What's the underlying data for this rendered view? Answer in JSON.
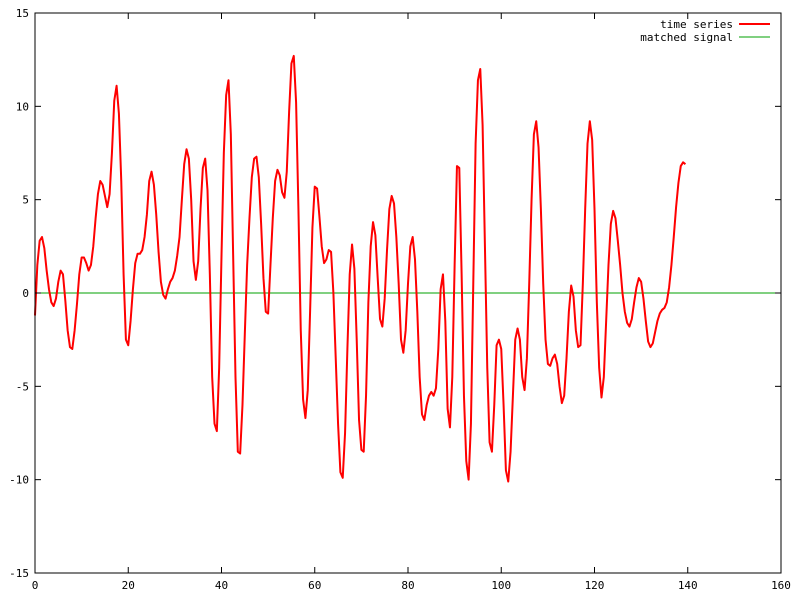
{
  "chart_data": {
    "type": "line",
    "xlim": [
      0,
      160
    ],
    "ylim": [
      -15,
      15
    ],
    "x_ticks": [
      0,
      20,
      40,
      60,
      80,
      100,
      120,
      140,
      160
    ],
    "y_ticks": [
      -15,
      -10,
      -5,
      0,
      5,
      10,
      15
    ],
    "x_tick_labels": [
      "0",
      "20",
      "40",
      "60",
      "80",
      "100",
      "120",
      "140",
      "160"
    ],
    "y_tick_labels": [
      "-15",
      "-10",
      "-5",
      "0",
      "5",
      "10",
      "15"
    ],
    "grid": false,
    "legend_position": "top-right",
    "series": [
      {
        "name": "time series",
        "color": "#ff0000",
        "points": [
          [
            0,
            -1.2
          ],
          [
            0.5,
            1.5
          ],
          [
            1,
            2.8
          ],
          [
            1.5,
            3.0
          ],
          [
            2,
            2.4
          ],
          [
            2.5,
            1.2
          ],
          [
            3,
            0.2
          ],
          [
            3.5,
            -0.5
          ],
          [
            4,
            -0.7
          ],
          [
            4.5,
            -0.3
          ],
          [
            5,
            0.6
          ],
          [
            5.5,
            1.2
          ],
          [
            6,
            1.0
          ],
          [
            6.5,
            -0.4
          ],
          [
            7,
            -2.0
          ],
          [
            7.5,
            -2.9
          ],
          [
            8,
            -3.0
          ],
          [
            8.5,
            -2.0
          ],
          [
            9,
            -0.6
          ],
          [
            9.5,
            1.0
          ],
          [
            10,
            1.9
          ],
          [
            10.5,
            1.9
          ],
          [
            11,
            1.6
          ],
          [
            11.5,
            1.2
          ],
          [
            12,
            1.5
          ],
          [
            12.5,
            2.5
          ],
          [
            13,
            4.0
          ],
          [
            13.5,
            5.3
          ],
          [
            14,
            6.0
          ],
          [
            14.5,
            5.8
          ],
          [
            15,
            5.2
          ],
          [
            15.5,
            4.6
          ],
          [
            16,
            5.3
          ],
          [
            16.5,
            7.5
          ],
          [
            17,
            10.3
          ],
          [
            17.5,
            11.1
          ],
          [
            18,
            9.6
          ],
          [
            18.5,
            6.0
          ],
          [
            19,
            1.0
          ],
          [
            19.5,
            -2.5
          ],
          [
            20,
            -2.8
          ],
          [
            20.5,
            -1.5
          ],
          [
            21,
            0.2
          ],
          [
            21.5,
            1.6
          ],
          [
            22,
            2.1
          ],
          [
            22.5,
            2.1
          ],
          [
            23,
            2.3
          ],
          [
            23.5,
            3.0
          ],
          [
            24,
            4.2
          ],
          [
            24.5,
            6.0
          ],
          [
            25,
            6.5
          ],
          [
            25.5,
            5.8
          ],
          [
            26,
            4.2
          ],
          [
            26.5,
            2.2
          ],
          [
            27,
            0.6
          ],
          [
            27.5,
            -0.1
          ],
          [
            28,
            -0.3
          ],
          [
            28.5,
            0.2
          ],
          [
            29,
            0.6
          ],
          [
            29.5,
            0.8
          ],
          [
            30,
            1.2
          ],
          [
            30.5,
            2.0
          ],
          [
            31,
            3.0
          ],
          [
            31.5,
            5.0
          ],
          [
            32,
            6.9
          ],
          [
            32.5,
            7.7
          ],
          [
            33,
            7.2
          ],
          [
            33.5,
            5.0
          ],
          [
            34,
            1.7
          ],
          [
            34.5,
            0.7
          ],
          [
            35,
            1.7
          ],
          [
            35.5,
            4.5
          ],
          [
            36,
            6.7
          ],
          [
            36.5,
            7.2
          ],
          [
            37,
            5.5
          ],
          [
            37.5,
            1.0
          ],
          [
            38,
            -4.5
          ],
          [
            38.5,
            -7.0
          ],
          [
            39,
            -7.4
          ],
          [
            39.5,
            -4.0
          ],
          [
            40,
            2.0
          ],
          [
            40.5,
            7.5
          ],
          [
            41,
            10.6
          ],
          [
            41.5,
            11.4
          ],
          [
            42,
            8.5
          ],
          [
            42.5,
            2.0
          ],
          [
            43,
            -4.5
          ],
          [
            43.5,
            -8.5
          ],
          [
            44,
            -8.6
          ],
          [
            44.5,
            -6.0
          ],
          [
            45,
            -2.2
          ],
          [
            45.5,
            1.5
          ],
          [
            46,
            4.0
          ],
          [
            46.5,
            6.2
          ],
          [
            47,
            7.2
          ],
          [
            47.5,
            7.3
          ],
          [
            48,
            6.2
          ],
          [
            48.5,
            3.7
          ],
          [
            49,
            0.8
          ],
          [
            49.5,
            -1.0
          ],
          [
            50,
            -1.1
          ],
          [
            50.5,
            1.5
          ],
          [
            51,
            4.0
          ],
          [
            51.5,
            6.0
          ],
          [
            52,
            6.6
          ],
          [
            52.5,
            6.3
          ],
          [
            53,
            5.4
          ],
          [
            53.5,
            5.1
          ],
          [
            54,
            6.5
          ],
          [
            54.5,
            9.7
          ],
          [
            55,
            12.3
          ],
          [
            55.5,
            12.7
          ],
          [
            56,
            10.2
          ],
          [
            56.5,
            4.5
          ],
          [
            57,
            -2.0
          ],
          [
            57.5,
            -5.7
          ],
          [
            58,
            -6.7
          ],
          [
            58.5,
            -5.2
          ],
          [
            59,
            -1.0
          ],
          [
            59.5,
            3.5
          ],
          [
            60,
            5.7
          ],
          [
            60.5,
            5.6
          ],
          [
            61,
            4.1
          ],
          [
            61.5,
            2.5
          ],
          [
            62,
            1.6
          ],
          [
            62.5,
            1.8
          ],
          [
            63,
            2.3
          ],
          [
            63.5,
            2.2
          ],
          [
            64,
            0.0
          ],
          [
            64.5,
            -3.5
          ],
          [
            65,
            -7.0
          ],
          [
            65.5,
            -9.6
          ],
          [
            66,
            -9.9
          ],
          [
            66.5,
            -7.5
          ],
          [
            67,
            -3.0
          ],
          [
            67.5,
            1.0
          ],
          [
            68,
            2.6
          ],
          [
            68.5,
            1.3
          ],
          [
            69,
            -2.5
          ],
          [
            69.5,
            -6.8
          ],
          [
            70,
            -8.4
          ],
          [
            70.5,
            -8.5
          ],
          [
            71,
            -5.5
          ],
          [
            71.5,
            -0.5
          ],
          [
            72,
            2.5
          ],
          [
            72.5,
            3.8
          ],
          [
            73,
            3.1
          ],
          [
            73.5,
            0.8
          ],
          [
            74,
            -1.4
          ],
          [
            74.5,
            -1.8
          ],
          [
            75,
            -0.3
          ],
          [
            75.5,
            2.3
          ],
          [
            76,
            4.5
          ],
          [
            76.5,
            5.2
          ],
          [
            77,
            4.8
          ],
          [
            77.5,
            3.0
          ],
          [
            78,
            0.5
          ],
          [
            78.5,
            -2.5
          ],
          [
            79,
            -3.2
          ],
          [
            79.5,
            -2.0
          ],
          [
            80,
            0.5
          ],
          [
            80.5,
            2.5
          ],
          [
            81,
            3.0
          ],
          [
            81.5,
            1.8
          ],
          [
            82,
            -1.0
          ],
          [
            82.5,
            -4.5
          ],
          [
            83,
            -6.5
          ],
          [
            83.5,
            -6.8
          ],
          [
            84,
            -6.0
          ],
          [
            84.5,
            -5.5
          ],
          [
            85,
            -5.3
          ],
          [
            85.5,
            -5.5
          ],
          [
            86,
            -5.1
          ],
          [
            86.5,
            -3.0
          ],
          [
            87,
            0.2
          ],
          [
            87.5,
            1.0
          ],
          [
            88,
            -1.5
          ],
          [
            88.5,
            -6.2
          ],
          [
            89,
            -7.2
          ],
          [
            89.5,
            -4.5
          ],
          [
            90,
            1.5
          ],
          [
            90.5,
            6.8
          ],
          [
            91,
            6.7
          ],
          [
            91.5,
            1.0
          ],
          [
            92,
            -5.5
          ],
          [
            92.5,
            -9.0
          ],
          [
            93,
            -10.0
          ],
          [
            93.5,
            -7.0
          ],
          [
            94,
            0.5
          ],
          [
            94.5,
            8.0
          ],
          [
            95,
            11.4
          ],
          [
            95.5,
            12.0
          ],
          [
            96,
            9.0
          ],
          [
            96.5,
            2.5
          ],
          [
            97,
            -4.0
          ],
          [
            97.5,
            -8.0
          ],
          [
            98,
            -8.5
          ],
          [
            98.5,
            -6.0
          ],
          [
            99,
            -2.8
          ],
          [
            99.5,
            -2.5
          ],
          [
            100,
            -3.0
          ],
          [
            100.5,
            -6.0
          ],
          [
            101,
            -9.5
          ],
          [
            101.5,
            -10.1
          ],
          [
            102,
            -8.5
          ],
          [
            102.5,
            -5.5
          ],
          [
            103,
            -2.5
          ],
          [
            103.5,
            -1.9
          ],
          [
            104,
            -2.5
          ],
          [
            104.5,
            -4.5
          ],
          [
            105,
            -5.2
          ],
          [
            105.5,
            -3.5
          ],
          [
            106,
            0.5
          ],
          [
            106.5,
            5.0
          ],
          [
            107,
            8.5
          ],
          [
            107.5,
            9.2
          ],
          [
            108,
            7.8
          ],
          [
            108.5,
            4.5
          ],
          [
            109,
            0.5
          ],
          [
            109.5,
            -2.5
          ],
          [
            110,
            -3.8
          ],
          [
            110.5,
            -3.9
          ],
          [
            111,
            -3.5
          ],
          [
            111.5,
            -3.3
          ],
          [
            112,
            -3.8
          ],
          [
            112.5,
            -5.0
          ],
          [
            113,
            -5.9
          ],
          [
            113.5,
            -5.5
          ],
          [
            114,
            -3.5
          ],
          [
            114.5,
            -1.0
          ],
          [
            115,
            0.4
          ],
          [
            115.5,
            -0.2
          ],
          [
            116,
            -2.0
          ],
          [
            116.5,
            -2.9
          ],
          [
            117,
            -2.8
          ],
          [
            117.5,
            0.5
          ],
          [
            118,
            4.5
          ],
          [
            118.5,
            8.0
          ],
          [
            119,
            9.2
          ],
          [
            119.5,
            8.2
          ],
          [
            120,
            4.5
          ],
          [
            120.5,
            -0.5
          ],
          [
            121,
            -4.0
          ],
          [
            121.5,
            -5.6
          ],
          [
            122,
            -4.5
          ],
          [
            122.5,
            -1.5
          ],
          [
            123,
            1.5
          ],
          [
            123.5,
            3.7
          ],
          [
            124,
            4.4
          ],
          [
            124.5,
            4.0
          ],
          [
            125,
            2.8
          ],
          [
            125.5,
            1.5
          ],
          [
            126,
            0.0
          ],
          [
            126.5,
            -1.0
          ],
          [
            127,
            -1.6
          ],
          [
            127.5,
            -1.8
          ],
          [
            128,
            -1.4
          ],
          [
            128.5,
            -0.5
          ],
          [
            129,
            0.3
          ],
          [
            129.5,
            0.8
          ],
          [
            130,
            0.6
          ],
          [
            130.5,
            -0.3
          ],
          [
            131,
            -1.5
          ],
          [
            131.5,
            -2.6
          ],
          [
            132,
            -2.9
          ],
          [
            132.5,
            -2.7
          ],
          [
            133,
            -2.1
          ],
          [
            133.5,
            -1.5
          ],
          [
            134,
            -1.1
          ],
          [
            134.5,
            -0.9
          ],
          [
            135,
            -0.8
          ],
          [
            135.5,
            -0.5
          ],
          [
            136,
            0.3
          ],
          [
            136.5,
            1.5
          ],
          [
            137,
            3.0
          ],
          [
            137.5,
            4.6
          ],
          [
            138,
            5.9
          ],
          [
            138.5,
            6.8
          ],
          [
            139,
            7.0
          ],
          [
            139.5,
            6.9
          ]
        ]
      },
      {
        "name": "matched signal",
        "color": "#00a000",
        "points": [
          [
            0,
            0
          ],
          [
            160,
            0
          ]
        ]
      }
    ]
  }
}
